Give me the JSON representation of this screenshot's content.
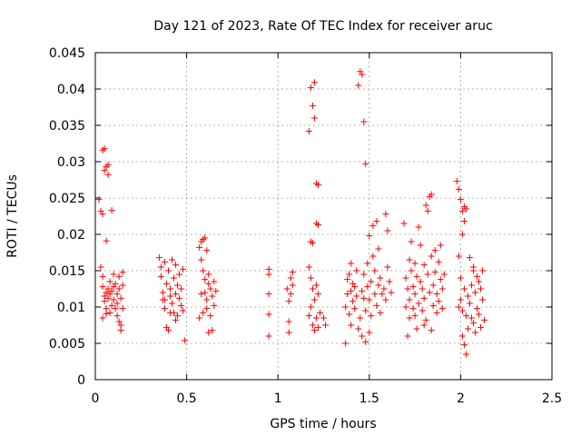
{
  "chart_data": {
    "type": "scatter",
    "title": "Day 121 of 2023, Rate Of TEC Index for receiver aruc",
    "xlabel": "GPS time / hours",
    "ylabel": "ROTI / TECUs",
    "xlim": [
      0,
      2.5
    ],
    "ylim": [
      0,
      0.045
    ],
    "x_ticks": [
      0,
      0.5,
      1,
      1.5,
      2,
      2.5
    ],
    "x_tick_labels": [
      "0",
      "0.5",
      "1",
      "1.5",
      "2",
      "2.5"
    ],
    "y_ticks": [
      0,
      0.005,
      0.01,
      0.015,
      0.02,
      0.025,
      0.03,
      0.035,
      0.04,
      0.045
    ],
    "y_tick_labels": [
      "0",
      "0.005",
      "0.01",
      "0.015",
      "0.02",
      "0.025",
      "0.03",
      "0.035",
      "0.04",
      "0.045"
    ],
    "grid": true,
    "marker": "+",
    "marker_color": "#ff0000",
    "series": [
      {
        "name": "ROTI",
        "points": [
          [
            0.02,
            0.0248
          ],
          [
            0.03,
            0.0232
          ],
          [
            0.04,
            0.0228
          ],
          [
            0.04,
            0.0316
          ],
          [
            0.05,
            0.0318
          ],
          [
            0.05,
            0.0288
          ],
          [
            0.06,
            0.0293
          ],
          [
            0.07,
            0.0296
          ],
          [
            0.07,
            0.0282
          ],
          [
            0.09,
            0.0233
          ],
          [
            0.06,
            0.0191
          ],
          [
            0.03,
            0.0155
          ],
          [
            0.04,
            0.0142
          ],
          [
            0.04,
            0.0128
          ],
          [
            0.05,
            0.0115
          ],
          [
            0.05,
            0.0108
          ],
          [
            0.06,
            0.0098
          ],
          [
            0.06,
            0.0091
          ],
          [
            0.07,
            0.0125
          ],
          [
            0.07,
            0.0112
          ],
          [
            0.08,
            0.0135
          ],
          [
            0.08,
            0.0118
          ],
          [
            0.09,
            0.0102
          ],
          [
            0.09,
            0.0122
          ],
          [
            0.1,
            0.0145
          ],
          [
            0.1,
            0.011
          ],
          [
            0.11,
            0.0098
          ],
          [
            0.11,
            0.0132
          ],
          [
            0.12,
            0.0118
          ],
          [
            0.12,
            0.0105
          ],
          [
            0.12,
            0.0088
          ],
          [
            0.13,
            0.0125
          ],
          [
            0.13,
            0.0142
          ],
          [
            0.14,
            0.0075
          ],
          [
            0.14,
            0.0068
          ],
          [
            0.14,
            0.0112
          ],
          [
            0.15,
            0.0098
          ],
          [
            0.15,
            0.013
          ],
          [
            0.15,
            0.0148
          ],
          [
            0.04,
            0.0085
          ],
          [
            0.06,
            0.012
          ],
          [
            0.08,
            0.0092
          ],
          [
            0.1,
            0.0128
          ],
          [
            0.13,
            0.008
          ],
          [
            0.35,
            0.0168
          ],
          [
            0.36,
            0.0155
          ],
          [
            0.36,
            0.0142
          ],
          [
            0.37,
            0.012
          ],
          [
            0.37,
            0.011
          ],
          [
            0.38,
            0.0162
          ],
          [
            0.38,
            0.0098
          ],
          [
            0.39,
            0.0132
          ],
          [
            0.39,
            0.0072
          ],
          [
            0.4,
            0.0068
          ],
          [
            0.4,
            0.015
          ],
          [
            0.41,
            0.0115
          ],
          [
            0.41,
            0.0125
          ],
          [
            0.42,
            0.0165
          ],
          [
            0.42,
            0.0105
          ],
          [
            0.43,
            0.014
          ],
          [
            0.43,
            0.0092
          ],
          [
            0.44,
            0.0118
          ],
          [
            0.44,
            0.0158
          ],
          [
            0.45,
            0.013
          ],
          [
            0.45,
            0.0088
          ],
          [
            0.46,
            0.0112
          ],
          [
            0.46,
            0.0145
          ],
          [
            0.47,
            0.0102
          ],
          [
            0.47,
            0.0125
          ],
          [
            0.48,
            0.0152
          ],
          [
            0.48,
            0.0095
          ],
          [
            0.49,
            0.0054
          ],
          [
            0.38,
            0.011
          ],
          [
            0.41,
            0.0092
          ],
          [
            0.44,
            0.0082
          ],
          [
            0.57,
            0.0182
          ],
          [
            0.58,
            0.019
          ],
          [
            0.59,
            0.0193
          ],
          [
            0.6,
            0.0195
          ],
          [
            0.61,
            0.0178
          ],
          [
            0.58,
            0.0165
          ],
          [
            0.59,
            0.015
          ],
          [
            0.6,
            0.0138
          ],
          [
            0.6,
            0.012
          ],
          [
            0.61,
            0.011
          ],
          [
            0.61,
            0.0098
          ],
          [
            0.62,
            0.0132
          ],
          [
            0.62,
            0.0145
          ],
          [
            0.63,
            0.0125
          ],
          [
            0.63,
            0.0088
          ],
          [
            0.64,
            0.0115
          ],
          [
            0.64,
            0.0068
          ],
          [
            0.65,
            0.0135
          ],
          [
            0.65,
            0.0102
          ],
          [
            0.66,
            0.0122
          ],
          [
            0.57,
            0.0085
          ],
          [
            0.58,
            0.0118
          ],
          [
            0.59,
            0.0092
          ],
          [
            0.62,
            0.0065
          ],
          [
            0.95,
            0.0152
          ],
          [
            0.95,
            0.0145
          ],
          [
            0.95,
            0.0118
          ],
          [
            0.95,
            0.009
          ],
          [
            0.95,
            0.006
          ],
          [
            1.05,
            0.0125
          ],
          [
            1.06,
            0.0108
          ],
          [
            1.06,
            0.008
          ],
          [
            1.06,
            0.0065
          ],
          [
            1.07,
            0.014
          ],
          [
            1.07,
            0.0118
          ],
          [
            1.08,
            0.0148
          ],
          [
            1.08,
            0.013
          ],
          [
            1.17,
            0.0342
          ],
          [
            1.18,
            0.0402
          ],
          [
            1.19,
            0.0377
          ],
          [
            1.2,
            0.0409
          ],
          [
            1.2,
            0.036
          ],
          [
            1.21,
            0.027
          ],
          [
            1.22,
            0.0268
          ],
          [
            1.21,
            0.0215
          ],
          [
            1.22,
            0.0213
          ],
          [
            1.18,
            0.019
          ],
          [
            1.19,
            0.0188
          ],
          [
            1.17,
            0.0155
          ],
          [
            1.18,
            0.014
          ],
          [
            1.18,
            0.01
          ],
          [
            1.19,
            0.0125
          ],
          [
            1.19,
            0.0075
          ],
          [
            1.2,
            0.011
          ],
          [
            1.2,
            0.0068
          ],
          [
            1.21,
            0.013
          ],
          [
            1.21,
            0.0085
          ],
          [
            1.22,
            0.0118
          ],
          [
            1.22,
            0.0072
          ],
          [
            1.23,
            0.0092
          ],
          [
            1.25,
            0.0085
          ],
          [
            1.26,
            0.0075
          ],
          [
            1.17,
            0.0088
          ],
          [
            1.37,
            0.005
          ],
          [
            1.37,
            0.01
          ],
          [
            1.38,
            0.0138
          ],
          [
            1.38,
            0.0118
          ],
          [
            1.39,
            0.0145
          ],
          [
            1.39,
            0.009
          ],
          [
            1.4,
            0.0122
          ],
          [
            1.4,
            0.016
          ],
          [
            1.41,
            0.0108
          ],
          [
            1.41,
            0.0132
          ],
          [
            1.42,
            0.0098
          ],
          [
            1.42,
            0.0128
          ],
          [
            1.43,
            0.0115
          ],
          [
            1.43,
            0.015
          ],
          [
            1.44,
            0.0405
          ],
          [
            1.45,
            0.0424
          ],
          [
            1.45,
            0.0085
          ],
          [
            1.46,
            0.042
          ],
          [
            1.46,
            0.0122
          ],
          [
            1.46,
            0.006
          ],
          [
            1.47,
            0.0355
          ],
          [
            1.47,
            0.0112
          ],
          [
            1.47,
            0.0145
          ],
          [
            1.48,
            0.0297
          ],
          [
            1.48,
            0.0095
          ],
          [
            1.48,
            0.0052
          ],
          [
            1.49,
            0.0128
          ],
          [
            1.49,
            0.016
          ],
          [
            1.5,
            0.011
          ],
          [
            1.5,
            0.0198
          ],
          [
            1.51,
            0.0135
          ],
          [
            1.51,
            0.0088
          ],
          [
            1.52,
            0.0212
          ],
          [
            1.52,
            0.017
          ],
          [
            1.53,
            0.0118
          ],
          [
            1.53,
            0.015
          ],
          [
            1.54,
            0.0218
          ],
          [
            1.54,
            0.0102
          ],
          [
            1.55,
            0.013
          ],
          [
            1.55,
            0.018
          ],
          [
            1.56,
            0.0092
          ],
          [
            1.56,
            0.014
          ],
          [
            1.57,
            0.0118
          ],
          [
            1.58,
            0.0125
          ],
          [
            1.59,
            0.0228
          ],
          [
            1.59,
            0.011
          ],
          [
            1.6,
            0.0205
          ],
          [
            1.6,
            0.0155
          ],
          [
            1.61,
            0.0135
          ],
          [
            1.62,
            0.012
          ],
          [
            1.4,
            0.0075
          ],
          [
            1.44,
            0.007
          ],
          [
            1.5,
            0.0065
          ],
          [
            1.69,
            0.0215
          ],
          [
            1.7,
            0.014
          ],
          [
            1.7,
            0.01
          ],
          [
            1.71,
            0.0125
          ],
          [
            1.71,
            0.006
          ],
          [
            1.72,
            0.011
          ],
          [
            1.72,
            0.0085
          ],
          [
            1.73,
            0.015
          ],
          [
            1.73,
            0.019
          ],
          [
            1.74,
            0.0128
          ],
          [
            1.74,
            0.0098
          ],
          [
            1.75,
            0.016
          ],
          [
            1.75,
            0.0118
          ],
          [
            1.76,
            0.007
          ],
          [
            1.76,
            0.0142
          ],
          [
            1.77,
            0.021
          ],
          [
            1.77,
            0.0105
          ],
          [
            1.78,
            0.0135
          ],
          [
            1.78,
            0.0185
          ],
          [
            1.79,
            0.0095
          ],
          [
            1.79,
            0.0125
          ],
          [
            1.8,
            0.0158
          ],
          [
            1.8,
            0.0112
          ],
          [
            1.81,
            0.024
          ],
          [
            1.81,
            0.0082
          ],
          [
            1.82,
            0.0232
          ],
          [
            1.82,
            0.0145
          ],
          [
            1.83,
            0.0252
          ],
          [
            1.83,
            0.012
          ],
          [
            1.84,
            0.0255
          ],
          [
            1.84,
            0.017
          ],
          [
            1.85,
            0.0102
          ],
          [
            1.85,
            0.013
          ],
          [
            1.86,
            0.0178
          ],
          [
            1.86,
            0.0148
          ],
          [
            1.87,
            0.0118
          ],
          [
            1.87,
            0.0092
          ],
          [
            1.88,
            0.0162
          ],
          [
            1.88,
            0.0108
          ],
          [
            1.89,
            0.0185
          ],
          [
            1.89,
            0.0138
          ],
          [
            1.9,
            0.0125
          ],
          [
            1.9,
            0.0098
          ],
          [
            1.91,
            0.0145
          ],
          [
            1.72,
            0.0165
          ],
          [
            1.75,
            0.0088
          ],
          [
            1.8,
            0.0075
          ],
          [
            1.84,
            0.0068
          ],
          [
            1.98,
            0.0273
          ],
          [
            1.99,
            0.0262
          ],
          [
            2.0,
            0.0248
          ],
          [
            2.01,
            0.0232
          ],
          [
            2.02,
            0.0238
          ],
          [
            2.03,
            0.0235
          ],
          [
            2.02,
            0.0218
          ],
          [
            2.01,
            0.02
          ],
          [
            1.99,
            0.017
          ],
          [
            2.0,
            0.014
          ],
          [
            2.0,
            0.011
          ],
          [
            2.01,
            0.0095
          ],
          [
            2.01,
            0.006
          ],
          [
            2.02,
            0.0125
          ],
          [
            2.02,
            0.0048
          ],
          [
            2.03,
            0.0088
          ],
          [
            2.03,
            0.0035
          ],
          [
            2.04,
            0.0115
          ],
          [
            2.04,
            0.007
          ],
          [
            2.05,
            0.0168
          ],
          [
            2.05,
            0.0105
          ],
          [
            2.06,
            0.013
          ],
          [
            2.06,
            0.0085
          ],
          [
            2.07,
            0.015
          ],
          [
            2.07,
            0.0078
          ],
          [
            2.08,
            0.012
          ],
          [
            2.08,
            0.0065
          ],
          [
            2.09,
            0.0142
          ],
          [
            2.09,
            0.0098
          ],
          [
            2.1,
            0.0135
          ],
          [
            2.1,
            0.009
          ],
          [
            2.11,
            0.0125
          ],
          [
            2.11,
            0.0072
          ],
          [
            2.12,
            0.015
          ],
          [
            2.12,
            0.011
          ],
          [
            2.13,
            0.0082
          ],
          [
            2.07,
            0.0155
          ],
          [
            1.99,
            0.01
          ]
        ]
      }
    ]
  }
}
